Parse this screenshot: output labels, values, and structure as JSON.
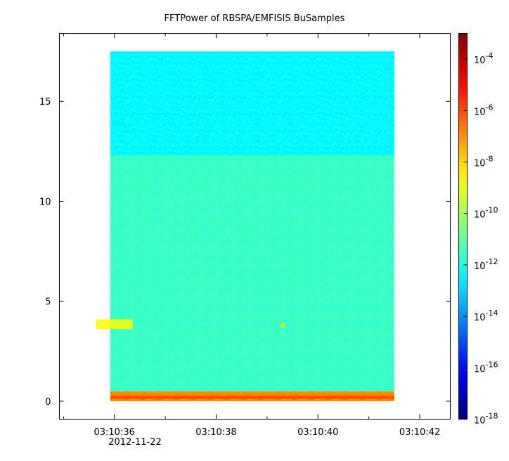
{
  "chart_data": {
    "type": "heatmap",
    "title": "FFTPower of RBSPA/EMFISIS  BuSamples",
    "xlabel": "",
    "ylabel": "",
    "x_range": [
      "03:10:34.92",
      "03:10:42.60"
    ],
    "data_x_range": [
      "03:10:35.92",
      "03:10:41.50"
    ],
    "x_ticks": [
      "03:10:36",
      "03:10:38",
      "03:10:40",
      "03:10:42"
    ],
    "x_minor_ticks": [
      "03:10:35",
      "03:10:37",
      "03:10:39",
      "03:10:41"
    ],
    "x_date_label": "2012-11-22",
    "ylim": [
      -0.9,
      18.4
    ],
    "data_y_range": [
      0,
      17.5
    ],
    "y_ticks": [
      0,
      5,
      10,
      15
    ],
    "colorbar": {
      "scale": "log",
      "range": [
        1e-18,
        0.001
      ],
      "tick_base": "10",
      "tick_exponents": [
        "-4",
        "-6",
        "-8",
        "-10",
        "-12",
        "-14",
        "-16",
        "-18"
      ]
    },
    "bands": [
      {
        "y_from": 0.0,
        "y_to": 0.5,
        "level": 0.74,
        "note": "strong low-frequency power"
      },
      {
        "y_from": 0.5,
        "y_to": 12.3,
        "level": 0.43
      },
      {
        "y_from": 12.3,
        "y_to": 17.5,
        "level": 0.37
      }
    ],
    "spots": [
      {
        "t": "03:10:36.0",
        "y_from": 3.6,
        "y_to": 4.1,
        "level": 0.62
      },
      {
        "t": "03:10:39.3",
        "y_from": 3.7,
        "y_to": 3.9,
        "level": 0.62
      }
    ]
  }
}
